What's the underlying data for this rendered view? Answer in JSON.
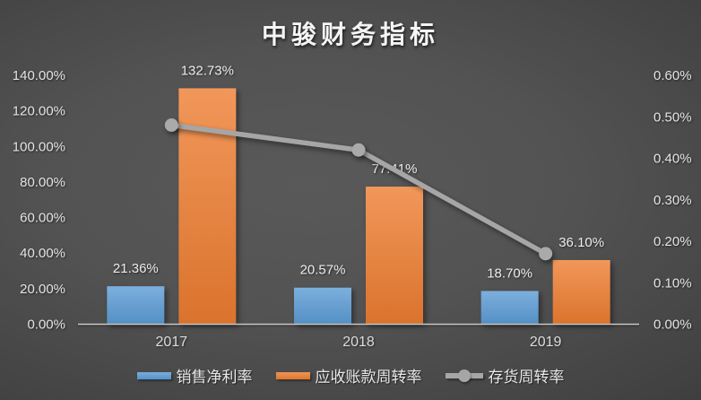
{
  "chart_data": {
    "type": "combo",
    "title": "中骏财务指标",
    "categories": [
      "2017",
      "2018",
      "2019"
    ],
    "series": [
      {
        "name": "销售净利率",
        "chart": "bar",
        "axis": "left",
        "color": "#5B9BD5",
        "values": [
          21.36,
          20.57,
          18.7
        ],
        "data_labels": [
          "21.36%",
          "20.57%",
          "18.70%"
        ]
      },
      {
        "name": "应收账款周转率",
        "chart": "bar",
        "axis": "left",
        "color": "#ED7D31",
        "values": [
          132.73,
          77.41,
          36.1
        ],
        "data_labels": [
          "132.73%",
          "77.41%",
          "36.10%"
        ]
      },
      {
        "name": "存货周转率",
        "chart": "line",
        "axis": "right",
        "color": "#A6A6A6",
        "values": [
          0.48,
          0.42,
          0.17
        ],
        "data_labels": []
      }
    ],
    "left_axis": {
      "min": 0,
      "max": 140,
      "tick_labels_top_to_bottom": [
        "140.00%",
        "120.00%",
        "100.00%",
        "80.00%",
        "60.00%",
        "40.00%",
        "20.00%",
        "0.00%"
      ]
    },
    "right_axis": {
      "min": 0,
      "max": 0.6,
      "tick_labels_top_to_bottom": [
        "0.60%",
        "0.50%",
        "0.40%",
        "0.30%",
        "0.20%",
        "0.10%",
        "0.00%"
      ]
    },
    "legend_position": "bottom",
    "grid": false,
    "colors": {
      "background_center": "#575757",
      "background_edge": "#262626",
      "axis_line": "#c9c9c9",
      "tick_text": "#e4e4e4",
      "title_text": "#f5f5f5"
    }
  }
}
